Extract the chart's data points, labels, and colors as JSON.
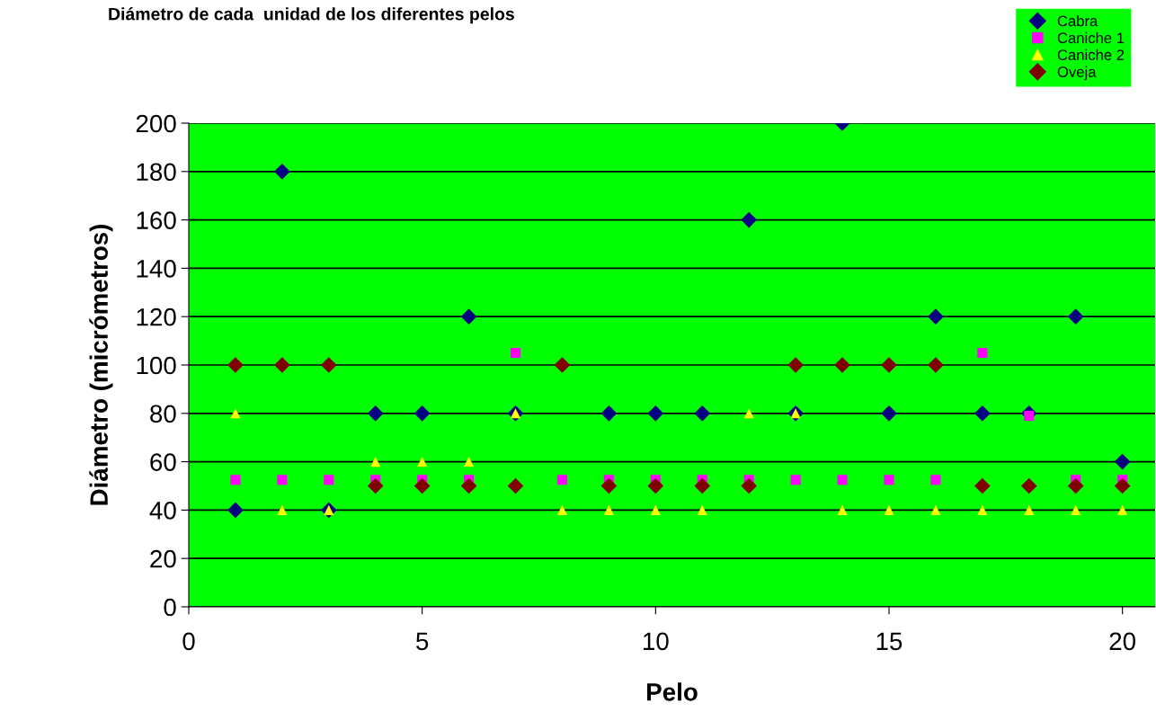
{
  "chart_data": {
    "type": "scatter",
    "title": "Diámetro de cada  unidad de los diferentes pelos",
    "xlabel": "Pelo",
    "ylabel": "Diámetro (micrómetros)",
    "x": [
      1,
      2,
      3,
      4,
      5,
      6,
      7,
      8,
      9,
      10,
      11,
      12,
      13,
      14,
      15,
      16,
      17,
      18,
      19,
      20
    ],
    "series": [
      {
        "name": "Cabra",
        "color": "#000080",
        "marker": "diamond",
        "values": [
          40,
          180,
          40,
          80,
          80,
          120,
          80,
          null,
          80,
          80,
          80,
          160,
          80,
          200,
          80,
          120,
          80,
          80,
          120,
          60
        ]
      },
      {
        "name": "Caniche 1",
        "color": "#ff00ff",
        "marker": "square",
        "values": [
          52.5,
          52.5,
          52.5,
          52.5,
          52.5,
          52.5,
          105,
          52.5,
          52.5,
          52.5,
          52.5,
          52.5,
          52.5,
          52.5,
          52.5,
          52.5,
          105,
          79,
          52.5,
          52.5
        ]
      },
      {
        "name": "Caniche 2",
        "color": "#ffff00",
        "marker": "triangle",
        "values": [
          80,
          40,
          40,
          60,
          60,
          60,
          80,
          40,
          40,
          40,
          40,
          80,
          80,
          40,
          40,
          40,
          40,
          40,
          40,
          40
        ]
      },
      {
        "name": "Oveja",
        "color": "#800000",
        "marker": "diamond",
        "values": [
          100,
          100,
          100,
          50,
          50,
          50,
          50,
          100,
          50,
          50,
          50,
          50,
          100,
          100,
          100,
          100,
          50,
          50,
          50,
          50
        ]
      }
    ],
    "xlim": [
      0,
      20.7
    ],
    "xticks": [
      0,
      5,
      10,
      15,
      20
    ],
    "ylim": [
      0,
      200
    ],
    "yticks": [
      0,
      20,
      40,
      60,
      80,
      100,
      120,
      140,
      160,
      180,
      200
    ],
    "grid": "y",
    "legend": "top right"
  }
}
